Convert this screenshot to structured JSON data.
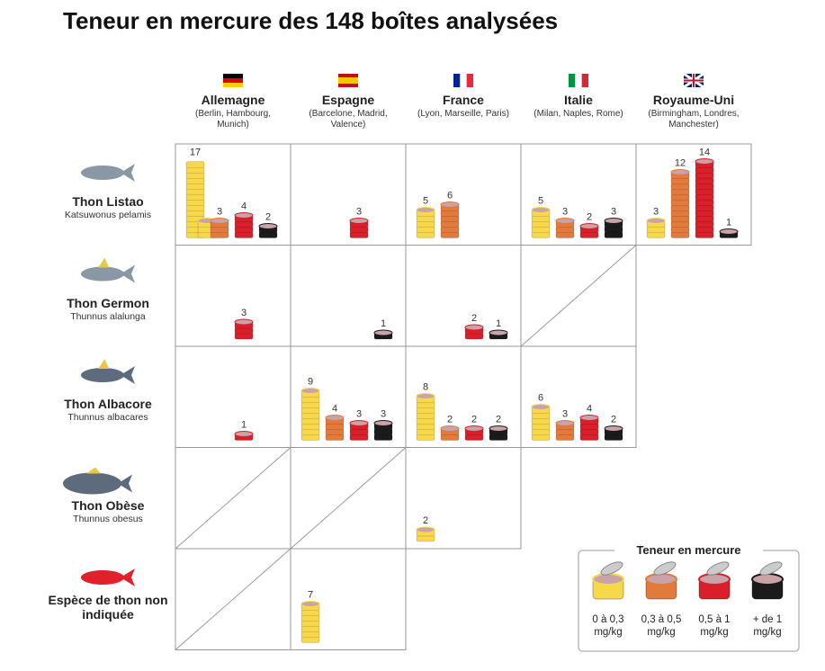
{
  "title": "Teneur en mercure des 148 boîtes analysées",
  "countries": [
    {
      "name": "Allemagne",
      "cities": "(Berlin, Hambourg, Munich)"
    },
    {
      "name": "Espagne",
      "cities": "(Barcelone, Madrid, Valence)"
    },
    {
      "name": "France",
      "cities": "(Lyon, Marseille, Paris)"
    },
    {
      "name": "Italie",
      "cities": "(Milan, Naples, Rome)"
    },
    {
      "name": "Royaume-Uni",
      "cities": "(Birmingham, Londres, Manchester)"
    }
  ],
  "species": [
    {
      "name": "Thon Listao",
      "latin": "Katsuwonus pelamis"
    },
    {
      "name": "Thon Germon",
      "latin": "Thunnus alalunga"
    },
    {
      "name": "Thon Albacore",
      "latin": "Thunnus albacares"
    },
    {
      "name": "Thon Obèse",
      "latin": "Thunnus obesus"
    },
    {
      "name": "Espèce de thon non indiquée",
      "latin": null
    }
  ],
  "cells": [
    [
      [
        17,
        3,
        4,
        2
      ],
      [
        null,
        null,
        3,
        null
      ],
      [
        5,
        6,
        null,
        null
      ],
      [
        5,
        3,
        2,
        3
      ],
      [
        3,
        12,
        14,
        1
      ]
    ],
    [
      [
        null,
        null,
        3,
        null
      ],
      [
        null,
        null,
        null,
        1
      ],
      [
        null,
        null,
        2,
        1
      ],
      null
    ],
    [
      [
        null,
        null,
        1,
        null
      ],
      [
        9,
        4,
        3,
        3
      ],
      [
        8,
        2,
        2,
        2
      ],
      [
        6,
        3,
        4,
        2
      ]
    ],
    [
      null,
      null,
      [
        2,
        null,
        null,
        null
      ]
    ],
    [
      null,
      [
        7,
        null,
        null,
        null
      ]
    ]
  ],
  "legend": {
    "title": "Teneur en mercure",
    "levels": [
      {
        "label": "0 à 0,3 mg/kg",
        "color": "#f6d84a"
      },
      {
        "label": "0,3 à 0,5 mg/kg",
        "color": "#e27a3c"
      },
      {
        "label": "0,5 à 1 mg/kg",
        "color": "#d81f2a"
      },
      {
        "label": "+ de 1 mg/kg",
        "color": "#1b1b1b"
      }
    ]
  }
}
